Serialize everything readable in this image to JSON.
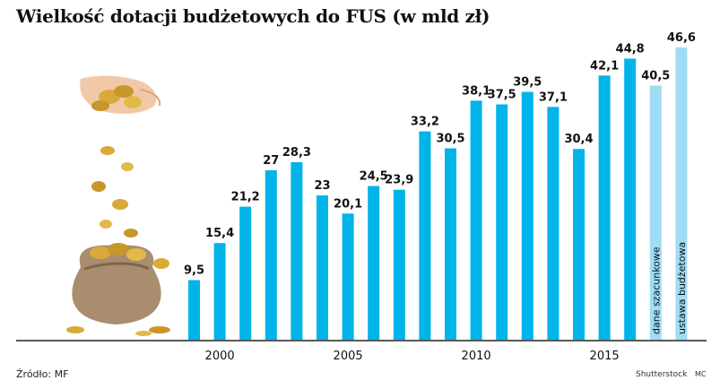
{
  "title": "Wielkość dotacji budżetowych do FUS (w mld zł)",
  "source": "Źródło: MF",
  "credit": "Shutterstock",
  "credit_initials": "MC",
  "colors": {
    "bar": "#00b4ea",
    "bar_estimate": "#9fdcf5",
    "axis": "#222222"
  },
  "chart_data": {
    "type": "bar",
    "title": "Wielkość dotacji budżetowych do FUS (w mld zł)",
    "categories": [
      "1999",
      "2000",
      "2001",
      "2002",
      "2003",
      "2004",
      "2005",
      "2006",
      "2007",
      "2008",
      "2009",
      "2010",
      "2011",
      "2012",
      "2013",
      "2014",
      "2015",
      "2016",
      "2017",
      "2018"
    ],
    "values": [
      9.5,
      15.4,
      21.2,
      27,
      28.3,
      23,
      20.1,
      24.5,
      23.9,
      33.2,
      30.5,
      38.1,
      37.5,
      39.5,
      37.1,
      30.4,
      42.1,
      44.8,
      40.5,
      46.6
    ],
    "value_labels": [
      "9,5",
      "15,4",
      "21,2",
      "27",
      "28,3",
      "23",
      "20,1",
      "24,5",
      "23,9",
      "33,2",
      "30,5",
      "38,1",
      "37,5",
      "39,5",
      "37,1",
      "30,4",
      "42,1",
      "44,8",
      "40,5",
      "46,6"
    ],
    "bar_notes": [
      {
        "category": "2017",
        "text": "dane szacunkowe"
      },
      {
        "category": "2018",
        "text": "ustawa budżetowa"
      }
    ],
    "estimate_categories": [
      "2017",
      "2018"
    ],
    "x_ticks": [
      {
        "category": "2000",
        "label": "2000"
      },
      {
        "category": "2005",
        "label": "2005"
      },
      {
        "category": "2010",
        "label": "2010"
      },
      {
        "category": "2015",
        "label": "2015"
      }
    ],
    "xlabel": "",
    "ylabel": "",
    "ylim": [
      0,
      50
    ],
    "grid": false,
    "legend": "none"
  }
}
